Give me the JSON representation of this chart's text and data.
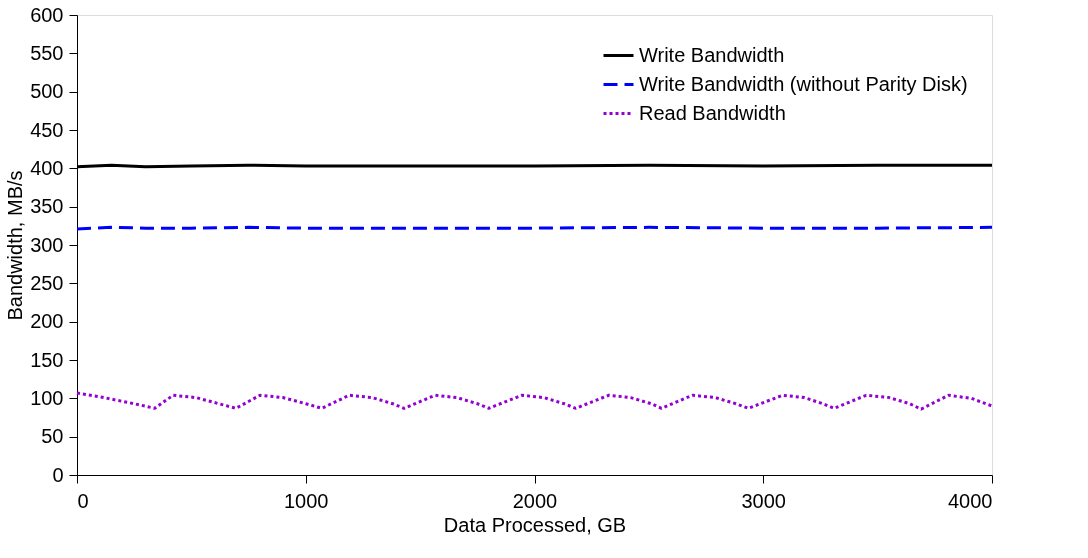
{
  "chart_data": {
    "type": "line",
    "xlabel": "Data Processed, GB",
    "ylabel": "Bandwidth, MB/s",
    "xlim": [
      0,
      4000
    ],
    "ylim": [
      0,
      600
    ],
    "xticks": [
      0,
      1000,
      2000,
      3000,
      4000
    ],
    "yticks": [
      0,
      50,
      100,
      150,
      200,
      250,
      300,
      350,
      400,
      450,
      500,
      550,
      600
    ],
    "grid": false,
    "legend": "top right",
    "marker": "none",
    "series": [
      {
        "name": "Write Bandwidth",
        "color": "#000000",
        "line_style": "solid",
        "x": [
          0,
          150,
          300,
          500,
          750,
          1000,
          1500,
          2000,
          2500,
          3000,
          3500,
          4000
        ],
        "values": [
          402,
          404,
          402,
          403,
          404,
          403,
          403,
          403,
          404,
          403,
          404,
          404
        ]
      },
      {
        "name": "Write Bandwidth (without Parity Disk)",
        "color": "#0000ff",
        "line_style": "dashed",
        "x": [
          0,
          150,
          300,
          500,
          750,
          1000,
          1500,
          2000,
          2500,
          3000,
          3500,
          4000
        ],
        "values": [
          321,
          323,
          322,
          322,
          323,
          322,
          322,
          322,
          323,
          322,
          322,
          323
        ]
      },
      {
        "name": "Read Bandwidth",
        "color": "#9400d3",
        "line_style": "dotted",
        "x": [
          0,
          100,
          250,
          340,
          420,
          520,
          620,
          695,
          800,
          900,
          1000,
          1070,
          1190,
          1290,
          1380,
          1430,
          1565,
          1660,
          1750,
          1800,
          1945,
          2040,
          2130,
          2180,
          2325,
          2420,
          2510,
          2555,
          2690,
          2790,
          2880,
          2935,
          3085,
          3180,
          3260,
          3310,
          3450,
          3550,
          3640,
          3690,
          3810,
          3910,
          4000
        ],
        "values": [
          107,
          102,
          93,
          87,
          104,
          101,
          93,
          87,
          104,
          101,
          93,
          87,
          104,
          101,
          93,
          87,
          104,
          101,
          93,
          87,
          104,
          101,
          93,
          87,
          104,
          101,
          93,
          87,
          104,
          101,
          93,
          87,
          104,
          101,
          93,
          87,
          104,
          101,
          93,
          86,
          104,
          100,
          90
        ]
      }
    ]
  }
}
